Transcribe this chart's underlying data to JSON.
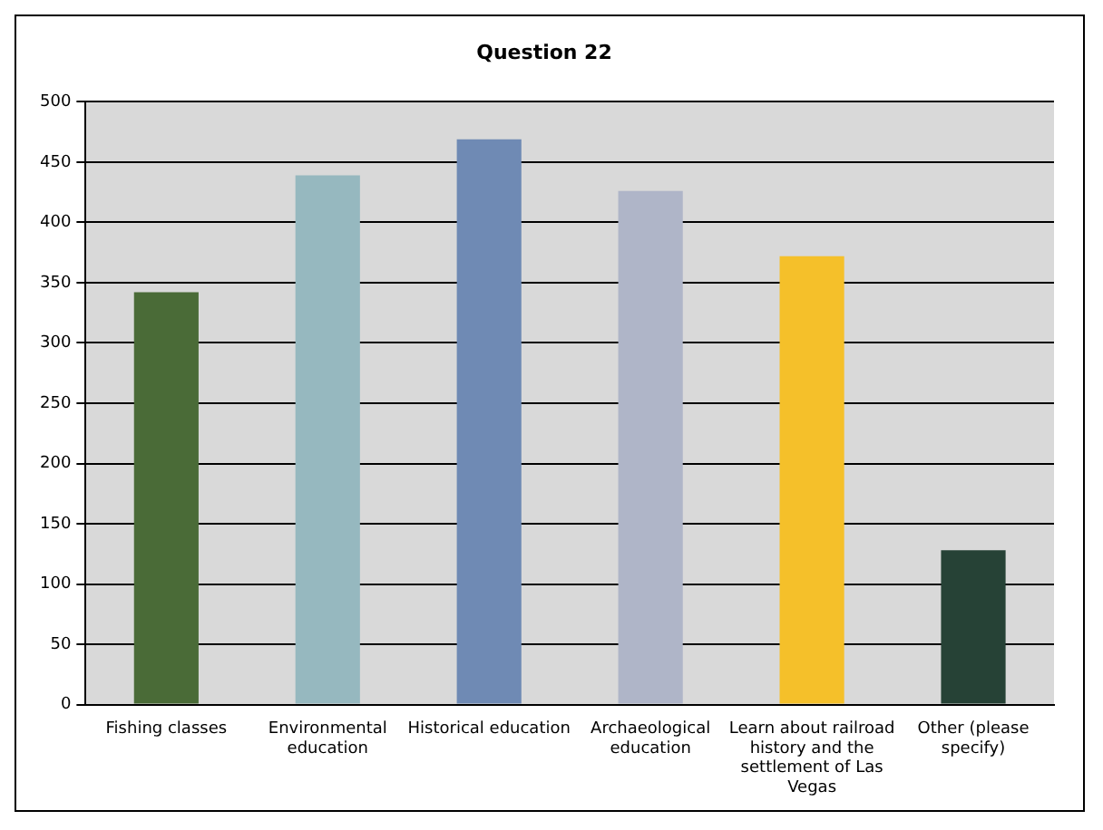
{
  "chart_data": {
    "type": "bar",
    "title": "Question 22",
    "categories": [
      "Fishing classes",
      "Environmental education",
      "Historical education",
      "Archaeological education",
      "Learn about railroad history and the settlement of Las Vegas",
      "Other (please specify)"
    ],
    "values": [
      342,
      439,
      469,
      426,
      372,
      128
    ],
    "colors": [
      "#4a6b37",
      "#96b8bf",
      "#6f8ab4",
      "#afb5c8",
      "#f5c02a",
      "#264236"
    ],
    "ylim": [
      0,
      500
    ],
    "yticks": [
      0,
      50,
      100,
      150,
      200,
      250,
      300,
      350,
      400,
      450,
      500
    ],
    "grid": "y"
  }
}
